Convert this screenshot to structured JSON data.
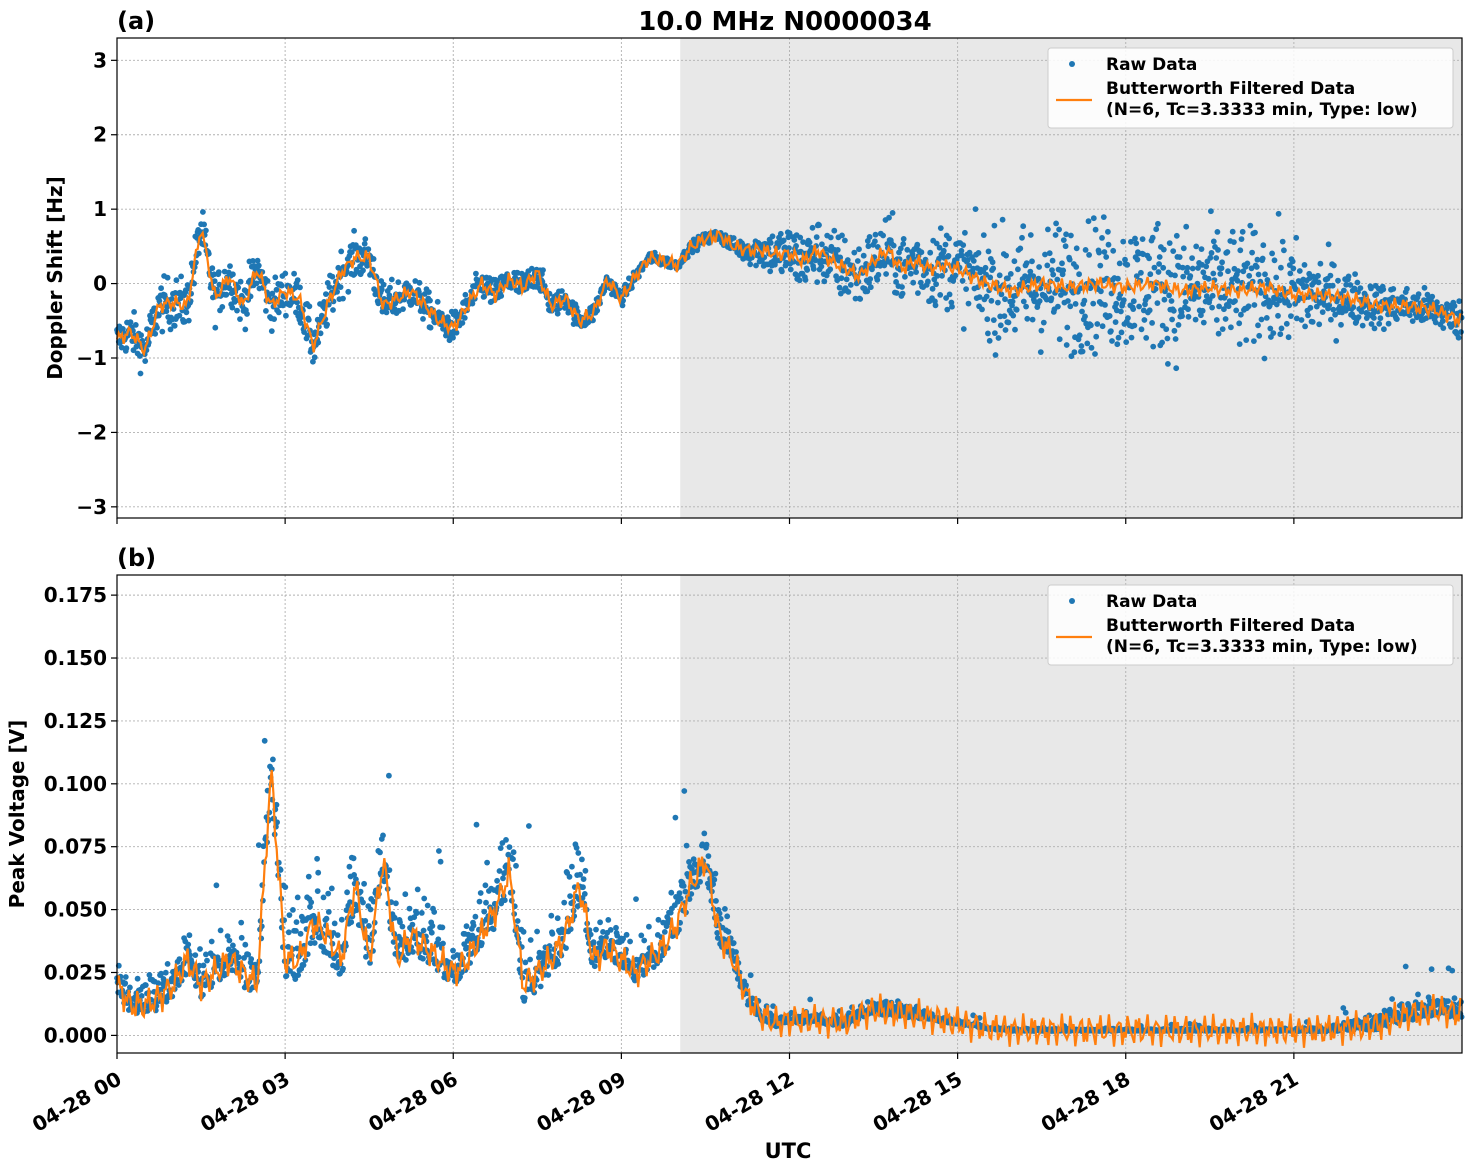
{
  "figure_title": "10.0 MHz N0000034",
  "xlabel": "UTC",
  "colors": {
    "raw": "#1f77b4",
    "filtered": "#ff7f0e",
    "shade": "#e8e8e8",
    "grid": "#b0b0b0"
  },
  "legend": {
    "raw_label": "Raw Data",
    "filtered_label_line1": "Butterworth Filtered Data",
    "filtered_label_line2": "(N=6, Tc=3.3333 min, Type: low)",
    "placement": "upper-right"
  },
  "chart_data": [
    {
      "panel_label": "(a)",
      "type": "scatter",
      "ylabel": "Doppler Shift [Hz]",
      "ylim": [
        -3.15,
        3.3
      ],
      "yticks": [
        -3,
        -2,
        -1,
        0,
        1,
        2,
        3
      ],
      "ytick_labels": [
        "−3",
        "−2",
        "−1",
        "0",
        "1",
        "2",
        "3"
      ],
      "xlim": [
        0,
        24
      ],
      "xticks": [
        0,
        3,
        6,
        9,
        12,
        15,
        18,
        21
      ],
      "xtick_labels": [
        "04-28 00",
        "04-28 03",
        "04-28 06",
        "04-28 09",
        "04-28 12",
        "04-28 15",
        "04-28 18",
        "04-28 21"
      ],
      "shaded_region_hours": [
        10.05,
        24
      ],
      "grid": true,
      "series": [
        {
          "name": "Butterworth Filtered Data",
          "x": [
            0,
            0.25,
            0.5,
            0.75,
            1.0,
            1.25,
            1.5,
            1.75,
            2.0,
            2.25,
            2.5,
            2.75,
            3.0,
            3.25,
            3.5,
            3.75,
            4.0,
            4.25,
            4.5,
            4.75,
            5.0,
            5.25,
            5.5,
            5.75,
            6.0,
            6.25,
            6.5,
            6.75,
            7.0,
            7.25,
            7.5,
            7.75,
            8.0,
            8.25,
            8.5,
            8.75,
            9.0,
            9.25,
            9.5,
            9.75,
            10.0,
            10.25,
            10.5,
            10.75,
            11.0,
            11.25,
            11.5,
            11.75,
            12.0,
            12.25,
            12.5,
            12.75,
            13.0,
            13.25,
            13.5,
            13.75,
            14.0,
            14.25,
            14.5,
            14.75,
            15.0,
            15.5,
            16.0,
            16.5,
            17.0,
            17.5,
            18.0,
            18.5,
            19.0,
            19.5,
            20.0,
            20.5,
            21.0,
            21.5,
            22.0,
            22.5,
            23.0,
            23.5,
            24.0
          ],
          "y": [
            -0.75,
            -0.65,
            -0.9,
            -0.3,
            -0.25,
            -0.3,
            0.75,
            -0.2,
            0.1,
            -0.3,
            0.2,
            -0.3,
            -0.1,
            -0.2,
            -0.85,
            -0.3,
            0.15,
            0.35,
            0.35,
            -0.3,
            -0.2,
            -0.1,
            -0.3,
            -0.5,
            -0.6,
            -0.3,
            0.0,
            -0.15,
            0.05,
            -0.05,
            0.15,
            -0.3,
            -0.2,
            -0.5,
            -0.4,
            0.05,
            -0.2,
            0.1,
            0.35,
            0.3,
            0.25,
            0.5,
            0.6,
            0.65,
            0.5,
            0.45,
            0.45,
            0.4,
            0.4,
            0.3,
            0.45,
            0.3,
            0.2,
            0.1,
            0.3,
            0.45,
            0.2,
            0.3,
            0.2,
            0.25,
            0.2,
            0.0,
            -0.1,
            0.0,
            -0.05,
            0.0,
            -0.05,
            0.0,
            -0.1,
            -0.05,
            -0.1,
            -0.05,
            -0.15,
            -0.15,
            -0.2,
            -0.3,
            -0.3,
            -0.35,
            -0.5
          ]
        },
        {
          "name": "Raw Data",
          "spread_x": [
            0,
            1,
            2,
            3,
            4,
            5,
            6,
            7,
            8,
            9,
            10,
            11,
            12,
            13,
            14,
            15,
            16,
            17,
            18,
            19,
            20,
            21,
            22,
            23,
            24
          ],
          "spread_y": [
            0.25,
            0.35,
            0.3,
            0.3,
            0.3,
            0.25,
            0.2,
            0.2,
            0.15,
            0.1,
            0.06,
            0.1,
            0.4,
            0.45,
            0.45,
            0.55,
            0.8,
            0.85,
            0.85,
            0.85,
            0.8,
            0.7,
            0.35,
            0.25,
            0.25
          ]
        }
      ]
    },
    {
      "panel_label": "(b)",
      "type": "scatter",
      "ylabel": "Peak Voltage [V]",
      "ylim": [
        -0.007,
        0.183
      ],
      "yticks": [
        0,
        0.025,
        0.05,
        0.075,
        0.1,
        0.125,
        0.15,
        0.175
      ],
      "ytick_labels": [
        "0.000",
        "0.025",
        "0.050",
        "0.075",
        "0.100",
        "0.125",
        "0.150",
        "0.175"
      ],
      "xlim": [
        0,
        24
      ],
      "xticks": [
        0,
        3,
        6,
        9,
        12,
        15,
        18,
        21
      ],
      "xtick_labels": [
        "04-28 00",
        "04-28 03",
        "04-28 06",
        "04-28 09",
        "04-28 12",
        "04-28 15",
        "04-28 18",
        "04-28 21"
      ],
      "shaded_region_hours": [
        10.05,
        24
      ],
      "grid": true,
      "series": [
        {
          "name": "Butterworth Filtered Data",
          "x": [
            0,
            0.25,
            0.5,
            0.75,
            1.0,
            1.25,
            1.5,
            1.75,
            2.0,
            2.25,
            2.5,
            2.75,
            3.0,
            3.25,
            3.5,
            3.75,
            4.0,
            4.25,
            4.5,
            4.75,
            5.0,
            5.25,
            5.5,
            5.75,
            6.0,
            6.25,
            6.5,
            6.75,
            7.0,
            7.25,
            7.5,
            7.75,
            8.0,
            8.25,
            8.5,
            8.75,
            9.0,
            9.25,
            9.5,
            9.75,
            10.0,
            10.25,
            10.5,
            10.75,
            11.0,
            11.25,
            11.5,
            11.75,
            12.0,
            12.5,
            13.0,
            13.25,
            13.5,
            14.0,
            14.5,
            15.0,
            15.5,
            16,
            17,
            18,
            19,
            20,
            21,
            21.5,
            22,
            22.5,
            23,
            23.5,
            24
          ],
          "y": [
            0.02,
            0.012,
            0.012,
            0.015,
            0.02,
            0.03,
            0.02,
            0.025,
            0.03,
            0.025,
            0.02,
            0.105,
            0.03,
            0.03,
            0.045,
            0.04,
            0.03,
            0.06,
            0.03,
            0.07,
            0.03,
            0.04,
            0.035,
            0.03,
            0.025,
            0.03,
            0.04,
            0.05,
            0.065,
            0.02,
            0.025,
            0.03,
            0.04,
            0.06,
            0.03,
            0.035,
            0.03,
            0.025,
            0.03,
            0.035,
            0.045,
            0.06,
            0.07,
            0.04,
            0.03,
            0.015,
            0.008,
            0.005,
            0.006,
            0.006,
            0.005,
            0.008,
            0.01,
            0.009,
            0.007,
            0.005,
            0.003,
            0.002,
            0.002,
            0.002,
            0.002,
            0.002,
            0.002,
            0.002,
            0.003,
            0.004,
            0.008,
            0.01,
            0.009
          ]
        },
        {
          "name": "Raw Data",
          "spread_x": [
            0,
            1,
            2,
            3,
            4,
            5,
            6,
            7,
            8,
            9,
            10,
            10.5,
            11,
            11.5,
            12,
            13,
            14,
            15,
            16,
            17,
            18,
            19,
            20,
            21,
            22,
            23,
            24
          ],
          "spread_y": [
            0.012,
            0.02,
            0.02,
            0.03,
            0.035,
            0.03,
            0.02,
            0.03,
            0.03,
            0.015,
            0.02,
            0.025,
            0.015,
            0.008,
            0.004,
            0.006,
            0.006,
            0.002,
            0.001,
            0.001,
            0.001,
            0.001,
            0.001,
            0.001,
            0.004,
            0.01,
            0.008
          ]
        }
      ]
    }
  ]
}
